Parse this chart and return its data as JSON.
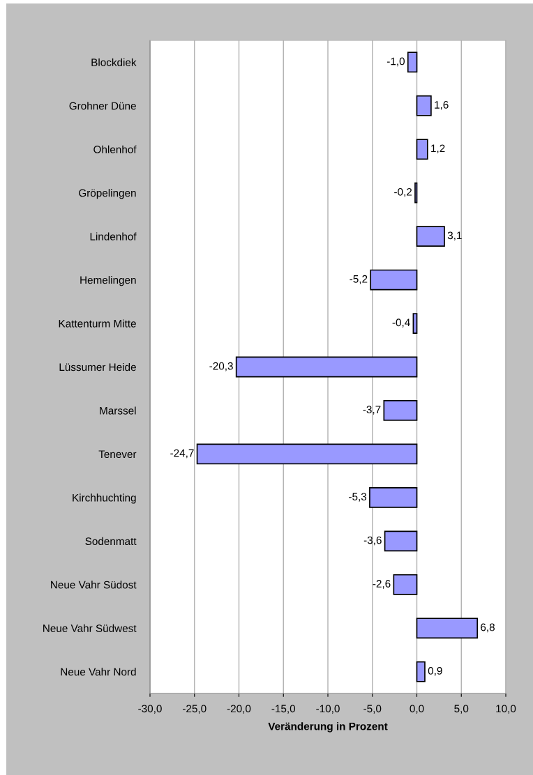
{
  "chart_data": {
    "type": "bar",
    "orientation": "horizontal",
    "xlabel": "Veränderung in Prozent",
    "categories": [
      "Blockdiek",
      "Grohner Düne",
      "Ohlenhof",
      "Gröpelingen",
      "Lindenhof",
      "Hemelingen",
      "Kattenturm Mitte",
      "Lüssumer Heide",
      "Marssel",
      "Tenever",
      "Kirchhuchting",
      "Sodenmatt",
      "Neue Vahr Südost",
      "Neue Vahr Südwest",
      "Neue Vahr Nord"
    ],
    "values": [
      -1.0,
      1.6,
      1.2,
      -0.2,
      3.1,
      -5.2,
      -0.4,
      -20.3,
      -3.7,
      -24.7,
      -5.3,
      -3.6,
      -2.6,
      6.8,
      0.9
    ],
    "value_labels": [
      "-1,0",
      "1,6",
      "1,2",
      "-0,2",
      "3,1",
      "-5,2",
      "-0,4",
      "-20,3",
      "-3,7",
      "-24,7",
      "-5,3",
      "-3,6",
      "-2,6",
      "6,8",
      "0,9"
    ],
    "color": "#9999ff",
    "xlim": [
      -30,
      10
    ],
    "xticks": [
      {
        "value": -30,
        "label": "-30,0"
      },
      {
        "value": -25,
        "label": "-25,0"
      },
      {
        "value": -20,
        "label": "-20,0"
      },
      {
        "value": -15,
        "label": "-15,0"
      },
      {
        "value": -10,
        "label": "-10,0"
      },
      {
        "value": -5,
        "label": "-5,0"
      },
      {
        "value": 0,
        "label": "0,0"
      },
      {
        "value": 5,
        "label": "5,0"
      },
      {
        "value": 10,
        "label": "10,0"
      }
    ],
    "grid": "x",
    "legend": false
  }
}
